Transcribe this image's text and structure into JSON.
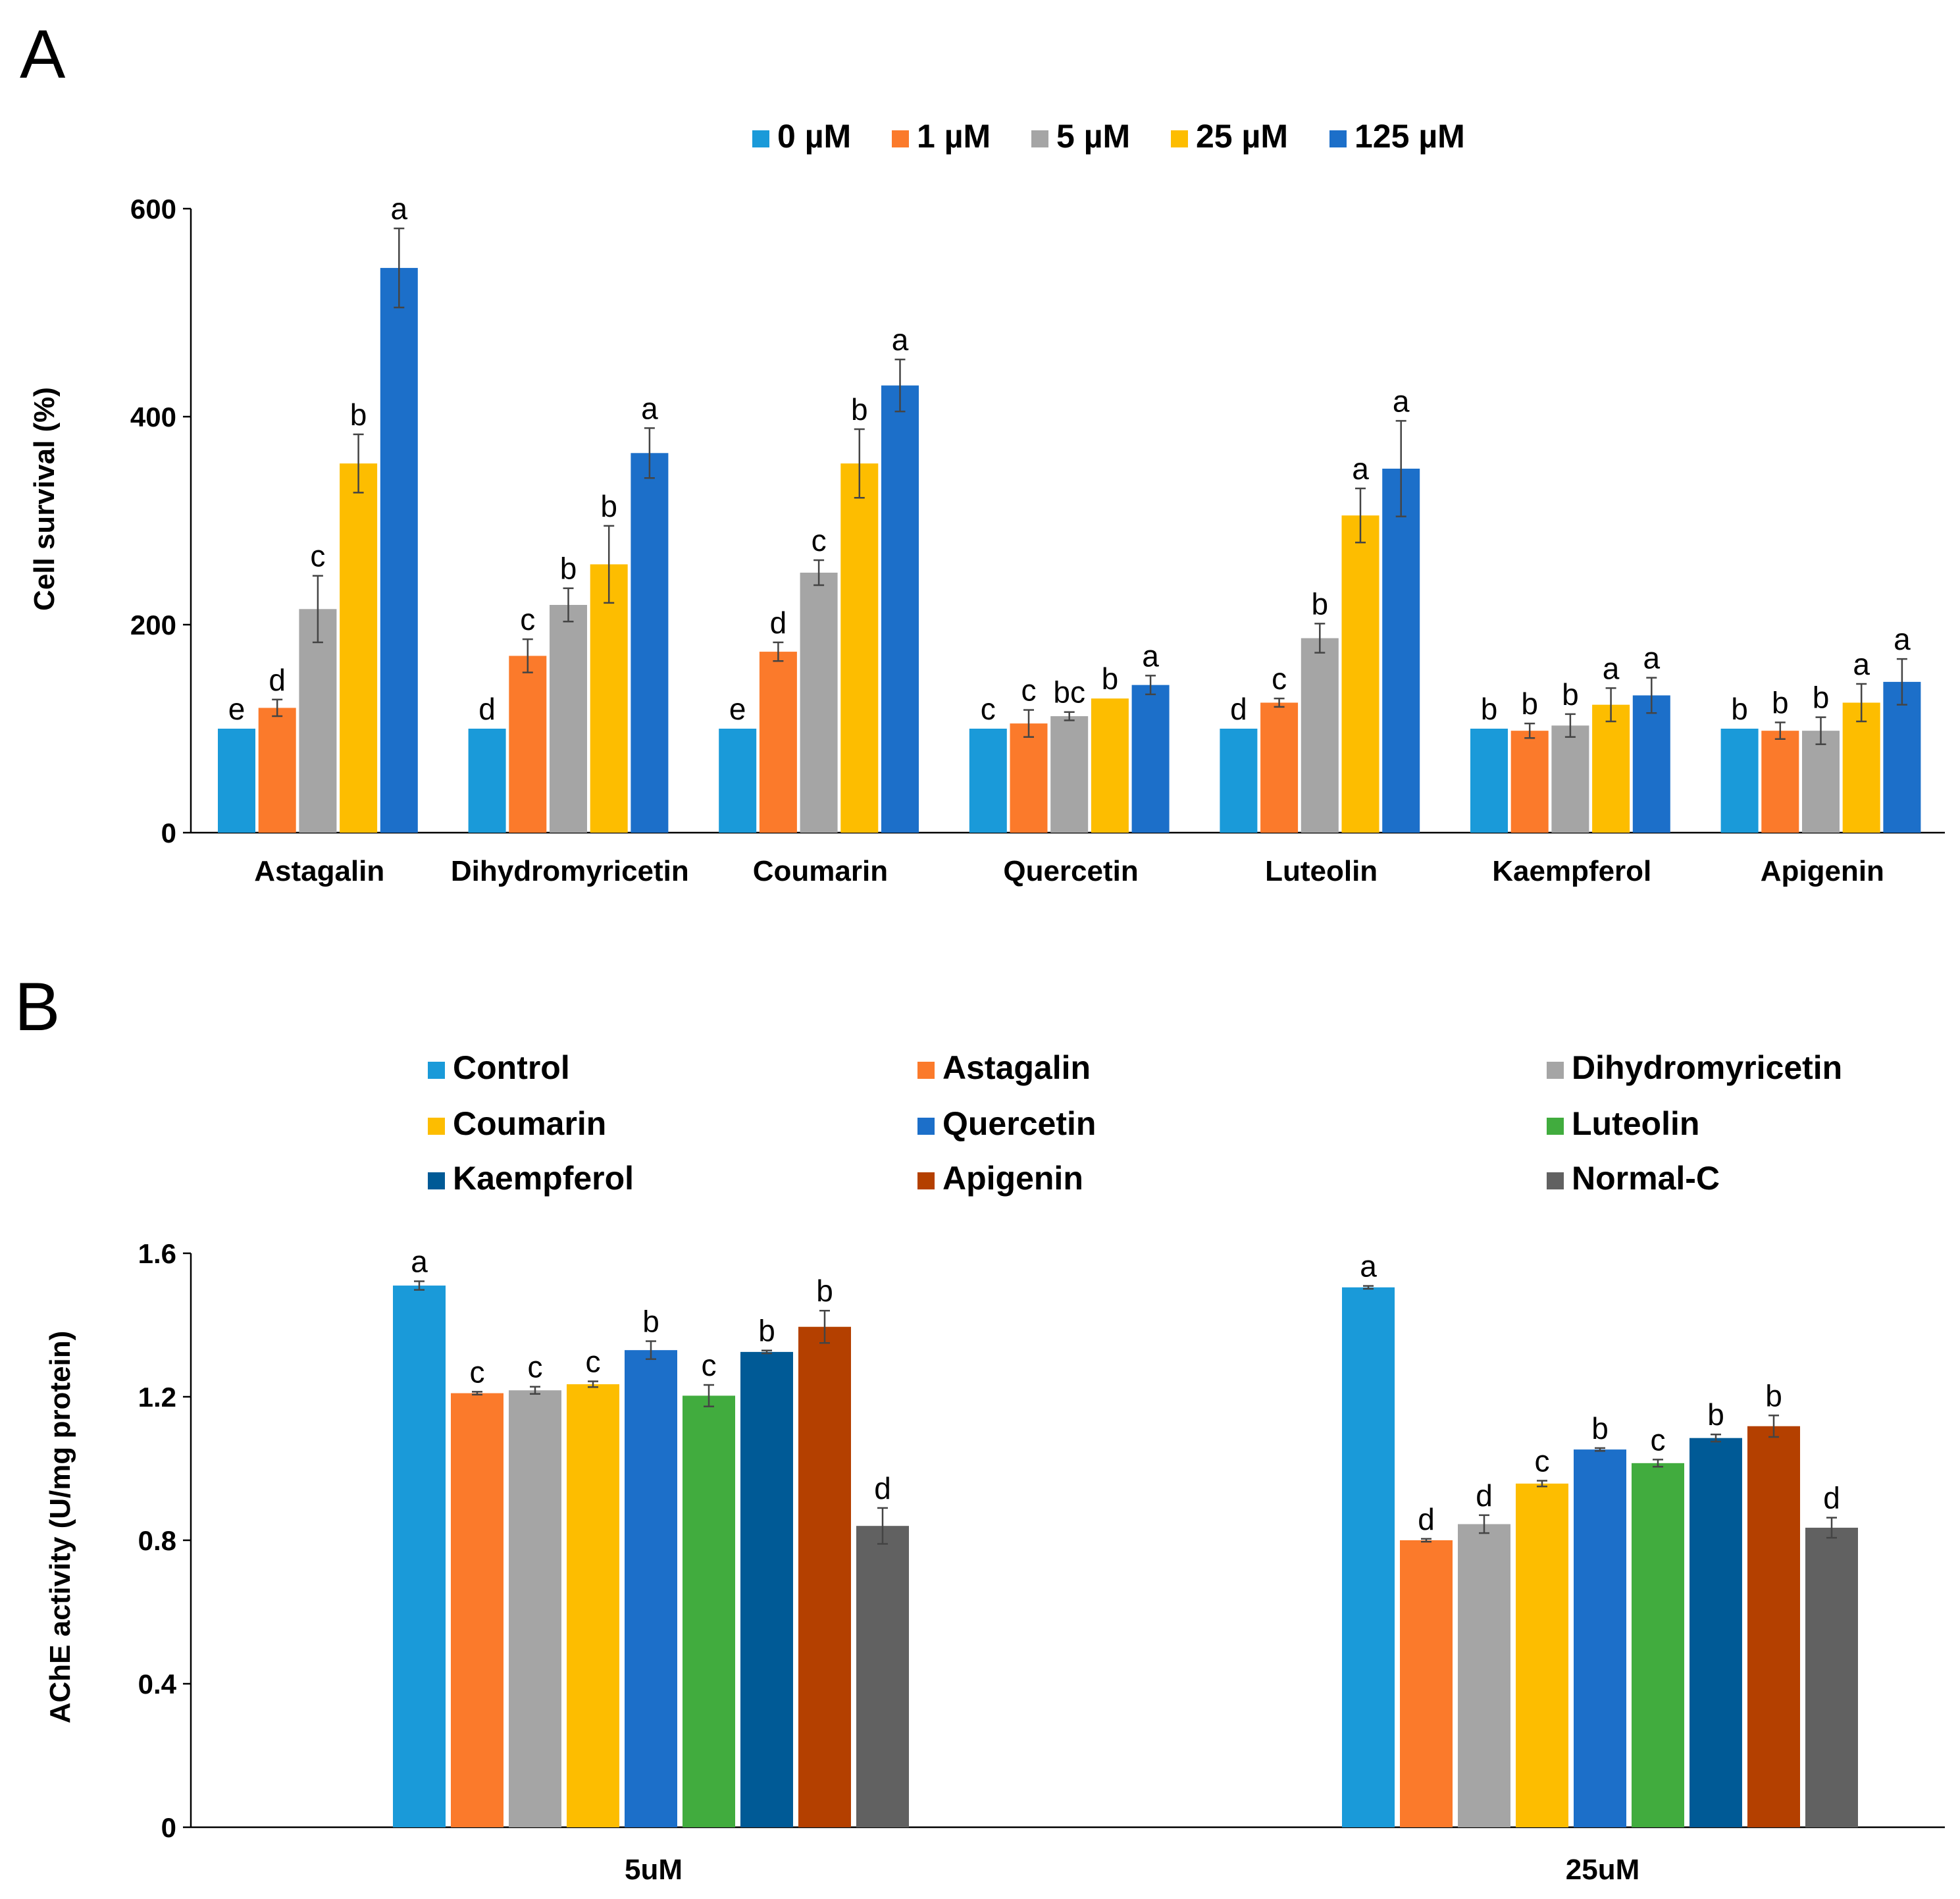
{
  "chart_data": [
    {
      "panel": "A",
      "type": "bar",
      "title": "",
      "xlabel": "",
      "ylabel": "Cell survival (%)",
      "ylim": [
        0,
        600
      ],
      "yticks": [
        0,
        200,
        400,
        600
      ],
      "grid": false,
      "legend_position": "top-center",
      "categories": [
        "Astagalin",
        "Dihydromyricetin",
        "Coumarin",
        "Quercetin",
        "Luteolin",
        "Kaempferol",
        "Apigenin"
      ],
      "series": [
        {
          "name": "0 µM",
          "color": "#1a9ad9",
          "values": [
            100,
            100,
            100,
            100,
            100,
            100,
            100
          ],
          "errors": [
            0,
            0,
            0,
            0,
            0,
            0,
            0
          ],
          "labels": [
            "e",
            "d",
            "e",
            "c",
            "d",
            "b",
            "b"
          ]
        },
        {
          "name": "1 µM",
          "color": "#fb7a2b",
          "values": [
            120,
            170,
            174,
            105,
            125,
            98,
            98
          ],
          "errors": [
            8,
            16,
            9,
            13,
            4,
            7,
            8
          ],
          "labels": [
            "d",
            "c",
            "d",
            "c",
            "c",
            "b",
            "b"
          ]
        },
        {
          "name": "5 µM",
          "color": "#a5a5a5",
          "values": [
            215,
            219,
            250,
            112,
            187,
            103,
            98
          ],
          "errors": [
            32,
            16,
            12,
            4,
            14,
            11,
            13
          ],
          "labels": [
            "c",
            "b",
            "c",
            "bc",
            "b",
            "b",
            "b"
          ]
        },
        {
          "name": "25 µM",
          "color": "#fdbd00",
          "values": [
            355,
            258,
            355,
            129,
            305,
            123,
            125
          ],
          "errors": [
            28,
            37,
            33,
            0,
            26,
            16,
            18
          ],
          "labels": [
            "b",
            "b",
            "b",
            "b",
            "a",
            "a",
            "a"
          ]
        },
        {
          "name": "125 µM",
          "color": "#1c6fc9",
          "values": [
            543,
            365,
            430,
            142,
            350,
            132,
            145
          ],
          "errors": [
            38,
            24,
            25,
            9,
            46,
            17,
            22
          ],
          "labels": [
            "a",
            "a",
            "a",
            "a",
            "a",
            "a",
            "a"
          ]
        }
      ]
    },
    {
      "panel": "B",
      "type": "bar",
      "title": "",
      "xlabel": "",
      "ylabel": "AChE activity (U/mg protein)",
      "ylim": [
        0,
        1.6
      ],
      "yticks": [
        "0",
        "0.4",
        "0.8",
        "1.2",
        "1.6"
      ],
      "grid": false,
      "legend_position": "top",
      "categories": [
        "5uM",
        "25uM"
      ],
      "series": [
        {
          "name": "Control",
          "color": "#1a9ad9",
          "values": [
            1.51,
            1.505
          ],
          "errors": [
            0.012,
            0.004
          ],
          "labels": [
            "a",
            "a"
          ]
        },
        {
          "name": "Astagalin",
          "color": "#fb7a2b",
          "values": [
            1.21,
            0.8
          ],
          "errors": [
            0.004,
            0.004
          ],
          "labels": [
            "c",
            "d"
          ]
        },
        {
          "name": "Dihydromyricetin",
          "color": "#a5a5a5",
          "values": [
            1.218,
            0.845
          ],
          "errors": [
            0.01,
            0.025
          ],
          "labels": [
            "c",
            "d"
          ]
        },
        {
          "name": "Coumarin",
          "color": "#fdbd00",
          "values": [
            1.235,
            0.958
          ],
          "errors": [
            0.008,
            0.008
          ],
          "labels": [
            "c",
            "c"
          ]
        },
        {
          "name": "Quercetin",
          "color": "#1c6fc9",
          "values": [
            1.33,
            1.053
          ],
          "errors": [
            0.025,
            0.004
          ],
          "labels": [
            "b",
            "b"
          ]
        },
        {
          "name": "Luteolin",
          "color": "#41ac3e",
          "values": [
            1.203,
            1.015
          ],
          "errors": [
            0.03,
            0.01
          ],
          "labels": [
            "c",
            "c"
          ]
        },
        {
          "name": "Kaempferol",
          "color": "#005a96",
          "values": [
            1.325,
            1.085
          ],
          "errors": [
            0.004,
            0.01
          ],
          "labels": [
            "b",
            "b"
          ]
        },
        {
          "name": "Apigenin",
          "color": "#b44000",
          "values": [
            1.395,
            1.118
          ],
          "errors": [
            0.045,
            0.03
          ],
          "labels": [
            "b",
            "b"
          ]
        },
        {
          "name": "Normal-C",
          "color": "#616161",
          "values": [
            0.84,
            0.835
          ],
          "errors": [
            0.05,
            0.028
          ],
          "labels": [
            "d",
            "d"
          ]
        }
      ]
    }
  ]
}
